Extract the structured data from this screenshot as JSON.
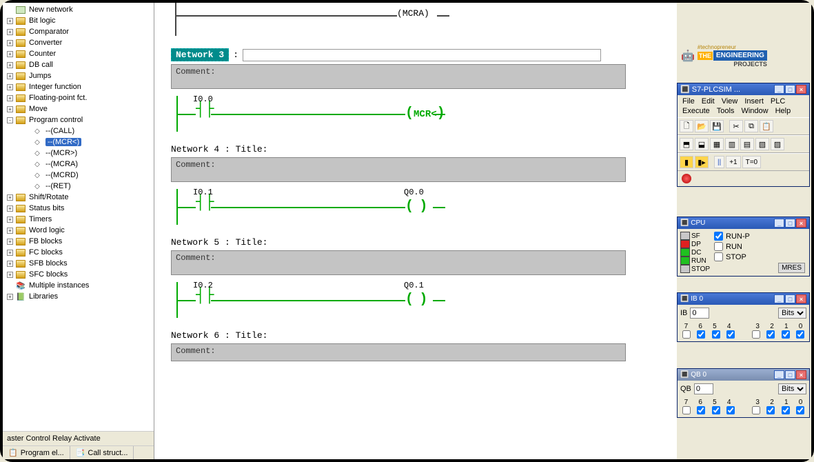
{
  "tree": {
    "items": [
      {
        "icon": "net",
        "label": "New network",
        "toggle": ""
      },
      {
        "icon": "folder",
        "label": "Bit logic",
        "toggle": "+"
      },
      {
        "icon": "folder",
        "label": "Comparator",
        "toggle": "+"
      },
      {
        "icon": "folder",
        "label": "Converter",
        "toggle": "+"
      },
      {
        "icon": "folder",
        "label": "Counter",
        "toggle": "+"
      },
      {
        "icon": "folder",
        "label": "DB call",
        "toggle": "+"
      },
      {
        "icon": "folder",
        "label": "Jumps",
        "toggle": "+"
      },
      {
        "icon": "folder",
        "label": "Integer function",
        "toggle": "+"
      },
      {
        "icon": "folder",
        "label": "Floating-point fct.",
        "toggle": "+"
      },
      {
        "icon": "folder",
        "label": "Move",
        "toggle": "+"
      },
      {
        "icon": "folder",
        "label": "Program control",
        "toggle": "-"
      }
    ],
    "program_control_children": [
      {
        "label": "--(CALL)"
      },
      {
        "label": "--(MCR<)",
        "selected": true
      },
      {
        "label": "--(MCR>)"
      },
      {
        "label": "--(MCRA)"
      },
      {
        "label": "--(MCRD)"
      },
      {
        "label": "--(RET)"
      }
    ],
    "items_after": [
      {
        "icon": "folder",
        "label": "Shift/Rotate",
        "toggle": "+"
      },
      {
        "icon": "folder",
        "label": "Status bits",
        "toggle": "+"
      },
      {
        "icon": "folder",
        "label": "Timers",
        "toggle": "+"
      },
      {
        "icon": "folder",
        "label": "Word logic",
        "toggle": "+"
      },
      {
        "icon": "folder",
        "label": "FB blocks",
        "toggle": "+"
      },
      {
        "icon": "folder",
        "label": "FC blocks",
        "toggle": "+"
      },
      {
        "icon": "folder",
        "label": "SFB blocks",
        "toggle": "+"
      },
      {
        "icon": "folder",
        "label": "SFC blocks",
        "toggle": "+"
      },
      {
        "icon": "multi",
        "label": "Multiple instances",
        "toggle": ""
      },
      {
        "icon": "lib",
        "label": "Libraries",
        "toggle": "+"
      }
    ]
  },
  "status_row": "aster Control Relay Activate",
  "bottom_tabs": {
    "t1": "Program el...",
    "t2": "Call struct..."
  },
  "networks": {
    "existing_coil": "MCRA",
    "n3": {
      "badge": "Network 3",
      "comment": "Comment:",
      "contact": "I0.0",
      "coil_text": "MCR<"
    },
    "n4": {
      "title": "Network 4 : Title:",
      "comment": "Comment:",
      "contact": "I0.1",
      "coil_tag": "Q0.0"
    },
    "n5": {
      "title": "Network 5 : Title:",
      "comment": "Comment:",
      "contact": "I0.2",
      "coil_tag": "Q0.1"
    },
    "n6": {
      "title": "Network 6 : Title:",
      "comment": "Comment:"
    }
  },
  "branding": {
    "the": "THE",
    "eng": "ENGINEERING",
    "proj": "PROJECTS",
    "tag": "#technopreneur"
  },
  "plcsim": {
    "title": "S7-PLCSIM ...",
    "menu": [
      "File",
      "Edit",
      "View",
      "Insert",
      "PLC",
      "Execute",
      "Tools",
      "Window",
      "Help"
    ],
    "toolbar2_labels": {
      "pause": "||",
      "plus1": "+1",
      "t0": "T=0"
    }
  },
  "cpu_win": {
    "title": "CPU",
    "leds": [
      {
        "name": "SF",
        "color": "#c8c8c8"
      },
      {
        "name": "DP",
        "color": "#e02020"
      },
      {
        "name": "DC",
        "color": "#20c020"
      },
      {
        "name": "RUN",
        "color": "#20c020"
      },
      {
        "name": "STOP",
        "color": "#c8c8c8"
      }
    ],
    "modes": {
      "runp": "RUN-P",
      "run": "RUN",
      "stop": "STOP"
    },
    "runp_checked": true,
    "mres": "MRES"
  },
  "ib_win": {
    "title": "IB    0",
    "type_label": "IB",
    "addr": "0",
    "format": "Bits",
    "bit_labels": [
      "7",
      "6",
      "5",
      "4",
      "3",
      "2",
      "1",
      "0"
    ],
    "bits": [
      false,
      true,
      true,
      true,
      false,
      true,
      true,
      true
    ]
  },
  "qb_win": {
    "title": "QB    0",
    "type_label": "QB",
    "addr": "0",
    "format": "Bits",
    "bit_labels": [
      "7",
      "6",
      "5",
      "4",
      "3",
      "2",
      "1",
      "0"
    ],
    "bits": [
      false,
      true,
      true,
      true,
      false,
      true,
      true,
      true
    ]
  },
  "colors": {
    "wire_on": "#00aa00",
    "selection": "#316ac5",
    "titlebar": "#3a69c6",
    "comment_bg": "#c4c4c4"
  }
}
